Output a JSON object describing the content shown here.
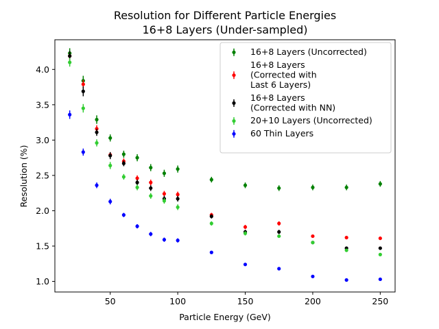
{
  "chart_data": {
    "type": "scatter",
    "title": "Resolution for Different Particle Energies",
    "subtitle": "16+8 Layers (Under-sampled)",
    "xlabel": "Particle Energy (GeV)",
    "ylabel": "Resolution (%)",
    "xlim": [
      9,
      261
    ],
    "ylim": [
      0.85,
      4.42
    ],
    "xticks": [
      50,
      100,
      150,
      200,
      250
    ],
    "xtick_labels": [
      "50",
      "100",
      "150",
      "200",
      "250"
    ],
    "yticks": [
      1.0,
      1.5,
      2.0,
      2.5,
      3.0,
      3.5,
      4.0
    ],
    "ytick_labels": [
      "1.0",
      "1.5",
      "2.0",
      "2.5",
      "3.0",
      "3.5",
      "4.0"
    ],
    "legend_position": "upper right",
    "x": [
      20,
      30,
      40,
      50,
      60,
      70,
      80,
      90,
      100,
      125,
      150,
      175,
      200,
      225,
      250
    ],
    "series": [
      {
        "name": "16+8 Layers (Uncorrected)",
        "legend_lines": [
          "16+8 Layers (Uncorrected)"
        ],
        "color": "#008000",
        "values": [
          4.23,
          3.84,
          3.29,
          3.03,
          2.8,
          2.75,
          2.61,
          2.53,
          2.59,
          2.44,
          2.36,
          2.32,
          2.33,
          2.33,
          2.38
        ],
        "errors": [
          0.07,
          0.07,
          0.06,
          0.05,
          0.05,
          0.05,
          0.05,
          0.05,
          0.05,
          0.04,
          0.04,
          0.04,
          0.04,
          0.04,
          0.04
        ]
      },
      {
        "name": "16+8 Layers (Corrected with Last 6 Layers)",
        "legend_lines": [
          "16+8 Layers",
          "(Corrected with",
          "Last 6 Layers)"
        ],
        "color": "#ff0000",
        "values": [
          4.19,
          3.79,
          3.16,
          2.79,
          2.7,
          2.46,
          2.4,
          2.24,
          2.23,
          1.94,
          1.77,
          1.82,
          1.64,
          1.62,
          1.61
        ],
        "errors": [
          0.06,
          0.06,
          0.05,
          0.04,
          0.04,
          0.04,
          0.04,
          0.04,
          0.04,
          0.03,
          0.03,
          0.03,
          0.02,
          0.02,
          0.02
        ]
      },
      {
        "name": "16+8 Layers (Corrected with NN)",
        "legend_lines": [
          "16+8 Layers",
          "(Corrected with NN)"
        ],
        "color": "#000000",
        "values": [
          4.19,
          3.69,
          3.11,
          2.78,
          2.67,
          2.4,
          2.32,
          2.17,
          2.17,
          1.92,
          1.7,
          1.7,
          1.55,
          1.47,
          1.47
        ],
        "errors": [
          0.07,
          0.07,
          0.05,
          0.05,
          0.04,
          0.04,
          0.04,
          0.04,
          0.04,
          0.03,
          0.03,
          0.03,
          0.02,
          0.02,
          0.02
        ]
      },
      {
        "name": "20+10 Layers (Uncorrected)",
        "legend_lines": [
          "20+10 Layers (Uncorrected)"
        ],
        "color": "#32cd32",
        "values": [
          4.1,
          3.45,
          2.96,
          2.64,
          2.48,
          2.33,
          2.21,
          2.14,
          2.05,
          1.82,
          1.68,
          1.64,
          1.55,
          1.44,
          1.38
        ],
        "errors": [
          0.06,
          0.06,
          0.05,
          0.05,
          0.04,
          0.04,
          0.04,
          0.04,
          0.04,
          0.03,
          0.03,
          0.02,
          0.02,
          0.02,
          0.02
        ]
      },
      {
        "name": "60 Thin Layers",
        "legend_lines": [
          "60 Thin Layers"
        ],
        "color": "#0000ff",
        "values": [
          3.36,
          2.83,
          2.36,
          2.13,
          1.94,
          1.78,
          1.67,
          1.59,
          1.58,
          1.41,
          1.24,
          1.18,
          1.07,
          1.02,
          1.03
        ],
        "errors": [
          0.06,
          0.05,
          0.04,
          0.04,
          0.03,
          0.03,
          0.03,
          0.03,
          0.03,
          0.02,
          0.02,
          0.02,
          0.01,
          0.01,
          0.01
        ]
      }
    ]
  }
}
